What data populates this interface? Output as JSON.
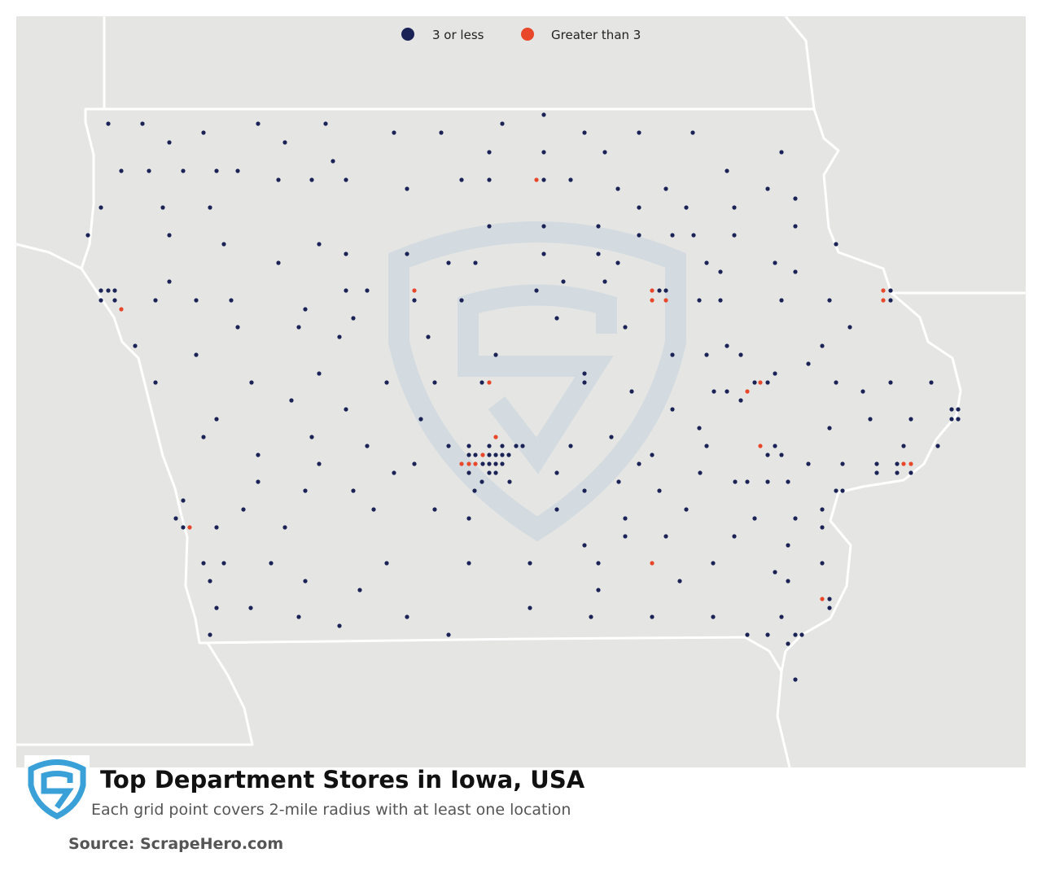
{
  "legend": [
    {
      "label": "3 or less",
      "color": "#1b2356"
    },
    {
      "label": "Greater than 3",
      "color": "#e8472a"
    }
  ],
  "title": "Top Department Stores in Iowa, USA",
  "subtitle": "Each grid point covers 2-mile radius with at least one location",
  "source": "Source: ScrapeHero.com"
}
